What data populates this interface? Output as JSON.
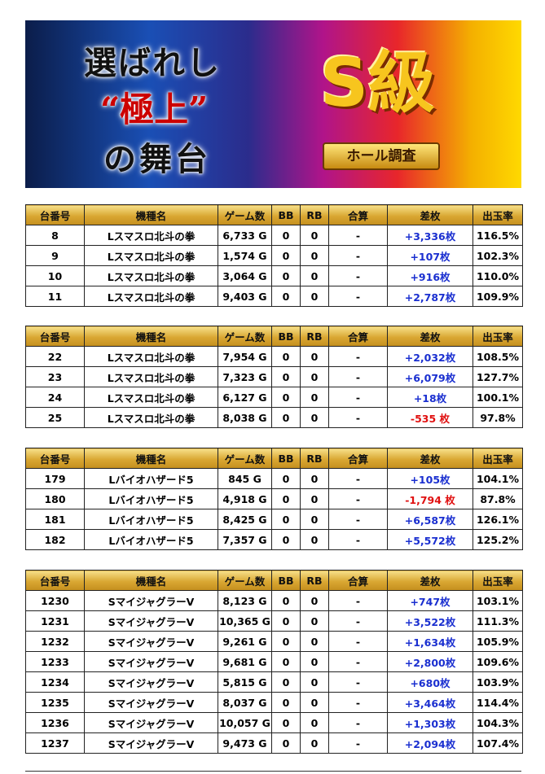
{
  "banner": {
    "line1": "選ばれし",
    "line2": "“極上”",
    "line3": "の舞台",
    "badge": "S級",
    "ribbon": "ホール調査"
  },
  "tables": [
    {
      "header": [
        "台番号",
        "機種名",
        "ゲーム数",
        "BB",
        "RB",
        "合算",
        "差枚",
        "出玉率"
      ],
      "rows": [
        [
          "8",
          "Lスマスロ北斗の拳",
          "6,733 G",
          "0",
          "0",
          "-",
          "+3,336枚",
          "116.5%"
        ],
        [
          "9",
          "Lスマスロ北斗の拳",
          "1,574 G",
          "0",
          "0",
          "-",
          "+107枚",
          "102.3%"
        ],
        [
          "10",
          "Lスマスロ北斗の拳",
          "3,064 G",
          "0",
          "0",
          "-",
          "+916枚",
          "110.0%"
        ],
        [
          "11",
          "Lスマスロ北斗の拳",
          "9,403 G",
          "0",
          "0",
          "-",
          "+2,787枚",
          "109.9%"
        ]
      ]
    },
    {
      "header": [
        "台番号",
        "機種名",
        "ゲーム数",
        "BB",
        "RB",
        "合算",
        "差枚",
        "出玉率"
      ],
      "rows": [
        [
          "22",
          "Lスマスロ北斗の拳",
          "7,954 G",
          "0",
          "0",
          "-",
          "+2,032枚",
          "108.5%"
        ],
        [
          "23",
          "Lスマスロ北斗の拳",
          "7,323 G",
          "0",
          "0",
          "-",
          "+6,079枚",
          "127.7%"
        ],
        [
          "24",
          "Lスマスロ北斗の拳",
          "6,127 G",
          "0",
          "0",
          "-",
          "+18枚",
          "100.1%"
        ],
        [
          "25",
          "Lスマスロ北斗の拳",
          "8,038 G",
          "0",
          "0",
          "-",
          "-535 枚",
          "97.8%"
        ]
      ]
    },
    {
      "header": [
        "台番号",
        "機種名",
        "ゲーム数",
        "BB",
        "RB",
        "合算",
        "差枚",
        "出玉率"
      ],
      "rows": [
        [
          "179",
          "Lバイオハザード5",
          "845 G",
          "0",
          "0",
          "-",
          "+105枚",
          "104.1%"
        ],
        [
          "180",
          "Lバイオハザード5",
          "4,918 G",
          "0",
          "0",
          "-",
          "-1,794 枚",
          "87.8%"
        ],
        [
          "181",
          "Lバイオハザード5",
          "8,425 G",
          "0",
          "0",
          "-",
          "+6,587枚",
          "126.1%"
        ],
        [
          "182",
          "Lバイオハザード5",
          "7,357 G",
          "0",
          "0",
          "-",
          "+5,572枚",
          "125.2%"
        ]
      ]
    },
    {
      "header": [
        "台番号",
        "機種名",
        "ゲーム数",
        "BB",
        "RB",
        "合算",
        "差枚",
        "出玉率"
      ],
      "rows": [
        [
          "1230",
          "SマイジャグラーV",
          "8,123 G",
          "0",
          "0",
          "-",
          "+747枚",
          "103.1%"
        ],
        [
          "1231",
          "SマイジャグラーV",
          "10,365 G",
          "0",
          "0",
          "-",
          "+3,522枚",
          "111.3%"
        ],
        [
          "1232",
          "SマイジャグラーV",
          "9,261 G",
          "0",
          "0",
          "-",
          "+1,634枚",
          "105.9%"
        ],
        [
          "1233",
          "SマイジャグラーV",
          "9,681 G",
          "0",
          "0",
          "-",
          "+2,800枚",
          "109.6%"
        ],
        [
          "1234",
          "SマイジャグラーV",
          "5,815 G",
          "0",
          "0",
          "-",
          "+680枚",
          "103.9%"
        ],
        [
          "1235",
          "SマイジャグラーV",
          "8,037 G",
          "0",
          "0",
          "-",
          "+3,464枚",
          "114.4%"
        ],
        [
          "1236",
          "SマイジャグラーV",
          "10,057 G",
          "0",
          "0",
          "-",
          "+1,303枚",
          "104.3%"
        ],
        [
          "1237",
          "SマイジャグラーV",
          "9,473 G",
          "0",
          "0",
          "-",
          "+2,094枚",
          "107.4%"
        ]
      ]
    }
  ]
}
